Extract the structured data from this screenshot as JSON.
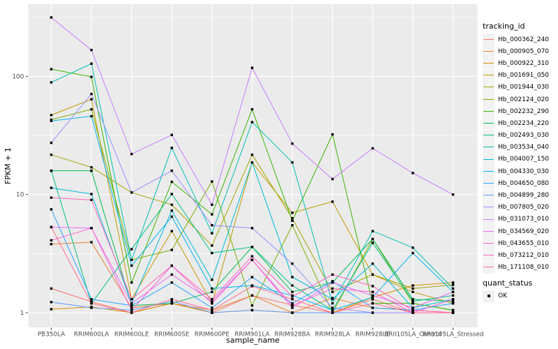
{
  "figure": {
    "background": "#FFFFFF",
    "panel_background": "#EBEBEB",
    "grid_color": "#FFFFFF",
    "tick_label_color": "#4D4D4D",
    "axis_title_color": "#000000",
    "point_color": "#000000",
    "legend_key_background": "#F2F2F2"
  },
  "chart_data": {
    "type": "line",
    "title": "",
    "xlabel": "sample_name",
    "ylabel": "FPKM + 1",
    "y_scale": "log10",
    "grid": true,
    "legend_position": "right",
    "y_ticks": [
      1,
      10,
      100
    ],
    "y_minor_ticks": [
      3.162,
      31.62,
      316.2
    ],
    "ylim": [
      0.75,
      412
    ],
    "point_marker": "filled-square",
    "categories": [
      "PB350LA",
      "RRIM600LA",
      "RRIM600LE",
      "RRIM600SE",
      "RRIM600PE",
      "RRIM901LA",
      "RRIM928BA",
      "RRIM928LA",
      "RRIM928LE",
      "RRII105LA_Control",
      "RRII105LA_Stressed"
    ],
    "series": [
      {
        "name": "Hb_000362_240",
        "color": "#F8766D",
        "values": [
          1.6,
          1.24,
          1.0,
          1.2,
          1.0,
          1.4,
          1.16,
          1.0,
          1.3,
          1.0,
          1.0
        ]
      },
      {
        "name": "Hb_000905_070",
        "color": "#EA8331",
        "values": [
          3.8,
          3.95,
          1.1,
          1.2,
          1.05,
          1.4,
          1.0,
          1.33,
          1.1,
          1.05,
          1.0
        ]
      },
      {
        "name": "Hb_000922_310",
        "color": "#D89000",
        "values": [
          1.07,
          1.12,
          1.0,
          1.2,
          1.0,
          1.05,
          1.0,
          1.0,
          1.35,
          1.7,
          1.8
        ]
      },
      {
        "name": "Hb_001691_050",
        "color": "#C09B00",
        "values": [
          47,
          64,
          1.3,
          4.9,
          1.2,
          18.7,
          7.0,
          8.7,
          2.1,
          1.5,
          1.2
        ]
      },
      {
        "name": "Hb_001944_030",
        "color": "#A3A500",
        "values": [
          21.7,
          17,
          10.4,
          8.2,
          3.7,
          21.7,
          6.3,
          1.5,
          2.1,
          1.6,
          1.72
        ]
      },
      {
        "name": "Hb_002124_020",
        "color": "#7CAE00",
        "values": [
          43,
          52.6,
          2.8,
          3.4,
          12.9,
          1.15,
          5.5,
          1.0,
          4.2,
          1.2,
          1.05
        ]
      },
      {
        "name": "Hb_002232_290",
        "color": "#39B600",
        "values": [
          115,
          99,
          1.8,
          12.8,
          6.8,
          52.6,
          6.0,
          32.3,
          1.2,
          1.2,
          1.05
        ]
      },
      {
        "name": "Hb_002234_220",
        "color": "#00BB4E",
        "values": [
          15.9,
          15.9,
          1.15,
          1.2,
          1.5,
          3.6,
          1.5,
          1.8,
          4.2,
          1.3,
          1.25
        ]
      },
      {
        "name": "Hb_002493_030",
        "color": "#00C087",
        "values": [
          15.9,
          1.2,
          3.45,
          10.1,
          3.2,
          3.6,
          1.7,
          1.05,
          3.9,
          1.25,
          1.4
        ]
      },
      {
        "name": "Hb_003534_040",
        "color": "#00C0B4",
        "values": [
          89,
          128,
          2.8,
          24.8,
          4.7,
          41,
          18.7,
          1.2,
          4.9,
          3.55,
          1.6
        ]
      },
      {
        "name": "Hb_004007_150",
        "color": "#00BCD8",
        "values": [
          11.4,
          10.1,
          1.2,
          7.3,
          1.9,
          18.7,
          2.0,
          1.3,
          2.6,
          1.1,
          1.3
        ]
      },
      {
        "name": "Hb_004330_030",
        "color": "#00B3F2",
        "values": [
          42,
          46,
          2.5,
          6.5,
          1.6,
          1.7,
          1.4,
          1.05,
          1.35,
          3.2,
          1.5
        ]
      },
      {
        "name": "Hb_004650_080",
        "color": "#29A3FF",
        "values": [
          7.5,
          1.3,
          1.15,
          1.8,
          1.1,
          2.0,
          1.2,
          1.85,
          1.1,
          1.05,
          1.2
        ]
      },
      {
        "name": "Hb_004899_280",
        "color": "#619CFF",
        "values": [
          1.23,
          1.1,
          1.05,
          1.25,
          1.0,
          1.05,
          1.0,
          1.0,
          1.0,
          1.0,
          1.0
        ]
      },
      {
        "name": "Hb_007805_020",
        "color": "#9590FF",
        "values": [
          27.4,
          71,
          10.4,
          15.9,
          5.5,
          5.2,
          2.6,
          1.1,
          1.0,
          1.0,
          1.0
        ]
      },
      {
        "name": "Hb_031073_010",
        "color": "#C77CFF",
        "values": [
          315,
          167,
          22,
          32,
          8.2,
          118,
          27,
          13.5,
          24.6,
          15.2,
          10
        ]
      },
      {
        "name": "Hb_034569_020",
        "color": "#E76BF3",
        "values": [
          5.3,
          5.2,
          1.2,
          2.1,
          1.25,
          2.8,
          1.1,
          1.8,
          1.4,
          1.1,
          1.5
        ]
      },
      {
        "name": "Hb_043655_010",
        "color": "#FB61D7",
        "values": [
          4.1,
          5.2,
          1.05,
          2.5,
          1.2,
          2.8,
          1.15,
          1.6,
          1.5,
          1.0,
          1.3
        ]
      },
      {
        "name": "Hb_073212_010",
        "color": "#FF62BC",
        "values": [
          9.4,
          9.0,
          1.3,
          2.5,
          1.3,
          3.0,
          1.37,
          2.1,
          1.68,
          1.05,
          1.0
        ]
      },
      {
        "name": "Hb_171108_010",
        "color": "#FF6C90",
        "values": [
          5.3,
          1.2,
          1.0,
          1.3,
          1.05,
          1.68,
          1.3,
          1.0,
          1.2,
          1.0,
          1.0
        ]
      }
    ],
    "legend": {
      "tracking_title": "tracking_id",
      "quant_title": "quant_status",
      "quant_items": [
        {
          "label": "OK",
          "marker": "filled-square",
          "color": "#000000"
        }
      ]
    }
  }
}
